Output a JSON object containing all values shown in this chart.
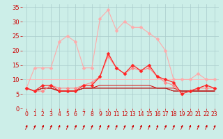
{
  "background_color": "#cceee8",
  "grid_color": "#aacccc",
  "xlabel": "Vent moyen/en rafales ( km/h )",
  "xlim": [
    -0.5,
    23.5
  ],
  "ylim": [
    0,
    36
  ],
  "yticks": [
    0,
    5,
    10,
    15,
    20,
    25,
    30,
    35
  ],
  "xticks": [
    0,
    1,
    2,
    3,
    4,
    5,
    6,
    7,
    8,
    9,
    10,
    11,
    12,
    13,
    14,
    15,
    16,
    17,
    18,
    19,
    20,
    21,
    22,
    23
  ],
  "series": [
    {
      "color": "#ffaaaa",
      "marker": "D",
      "markersize": 2.5,
      "linewidth": 0.8,
      "y": [
        7,
        14,
        14,
        14,
        23,
        25,
        23,
        14,
        14,
        31,
        34,
        27,
        30,
        28,
        28,
        26,
        24,
        20,
        10,
        10,
        10,
        12,
        10,
        10
      ]
    },
    {
      "color": "#ff8888",
      "marker": "D",
      "markersize": 2.5,
      "linewidth": 0.8,
      "y": [
        7,
        6,
        6,
        8,
        7,
        7,
        7,
        8,
        9,
        11,
        18,
        14,
        12,
        14,
        13,
        14,
        11,
        9,
        8,
        5,
        6,
        7,
        7,
        7
      ]
    },
    {
      "color": "#ff2222",
      "marker": "D",
      "markersize": 2.5,
      "linewidth": 0.9,
      "y": [
        7,
        6,
        8,
        8,
        6,
        6,
        6,
        8,
        8,
        11,
        19,
        14,
        12,
        15,
        13,
        15,
        11,
        10,
        9,
        5,
        6,
        7,
        8,
        7
      ]
    },
    {
      "color": "#dd0000",
      "marker": null,
      "linewidth": 0.7,
      "y": [
        7,
        6,
        7,
        7,
        6,
        6,
        6,
        7,
        7,
        8,
        8,
        8,
        8,
        8,
        8,
        8,
        7,
        7,
        7,
        6,
        6,
        6,
        6,
        6
      ]
    },
    {
      "color": "#880000",
      "marker": null,
      "linewidth": 0.7,
      "y": [
        7,
        6,
        7,
        7,
        6,
        6,
        6,
        7,
        7,
        7,
        7,
        7,
        7,
        7,
        7,
        7,
        7,
        7,
        6,
        6,
        6,
        6,
        6,
        6
      ]
    },
    {
      "color": "#cc2222",
      "marker": null,
      "linewidth": 0.7,
      "y": [
        7,
        6,
        7,
        7,
        6,
        6,
        6,
        7,
        7,
        7,
        7,
        7,
        7,
        7,
        7,
        7,
        7,
        7,
        6,
        6,
        6,
        6,
        6,
        6
      ]
    },
    {
      "color": "#ffbbbb",
      "marker": null,
      "linewidth": 0.7,
      "y": [
        10,
        10,
        10,
        10,
        10,
        10,
        10,
        10,
        10,
        10,
        10,
        10,
        10,
        10,
        10,
        10,
        10,
        10,
        10,
        10,
        10,
        10,
        10,
        10
      ]
    }
  ],
  "arrow_color": "#cc0000",
  "xlabel_color": "#cc0000",
  "tick_color": "#cc0000",
  "tick_fontsize": 5.5,
  "xlabel_fontsize": 6.5
}
